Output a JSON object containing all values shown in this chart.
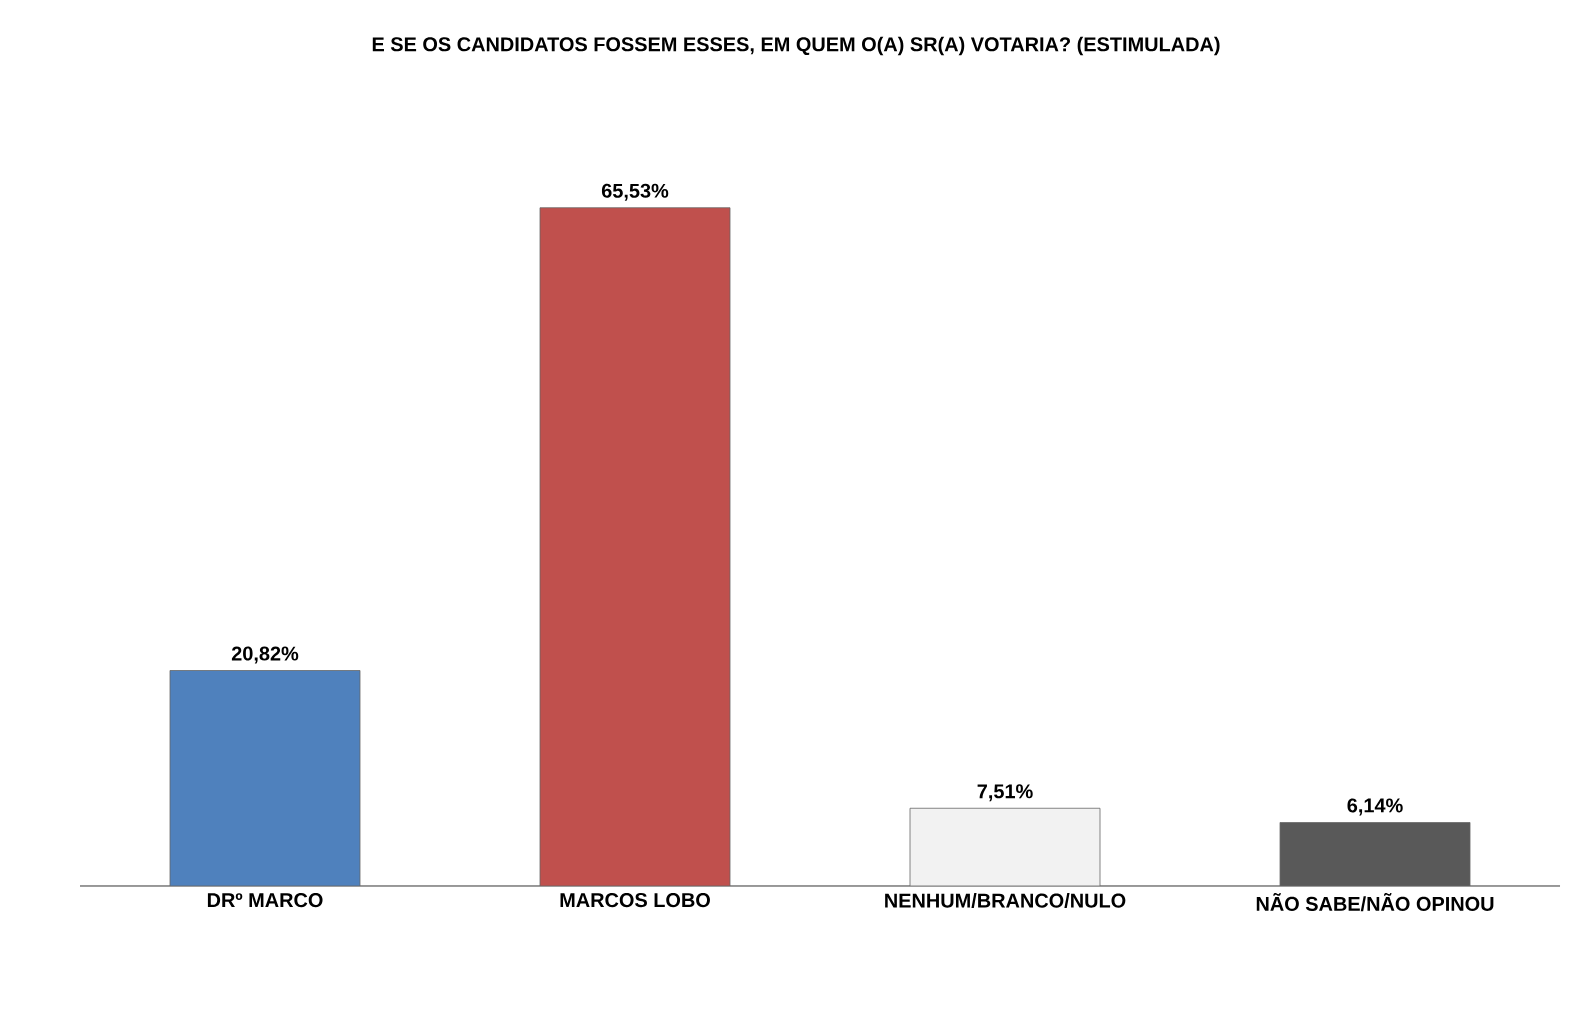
{
  "chart_data": {
    "type": "bar",
    "title": "E SE OS CANDIDATOS FOSSEM ESSES, EM QUEM O(A) SR(A) VOTARIA? (ESTIMULADA)",
    "categories": [
      "DRº MARCO",
      "MARCOS LOBO",
      "NENHUM/BRANCO/NULO",
      "NÃO SABE/NÃO OPINOU"
    ],
    "values": [
      20.82,
      65.53,
      7.51,
      6.14
    ],
    "colors": [
      "#4f81bd",
      "#c0504d",
      "#f2f2f2",
      "#595959"
    ],
    "value_labels": [
      "20,82%",
      "65,53%",
      "7,51%",
      "6,14%"
    ]
  }
}
